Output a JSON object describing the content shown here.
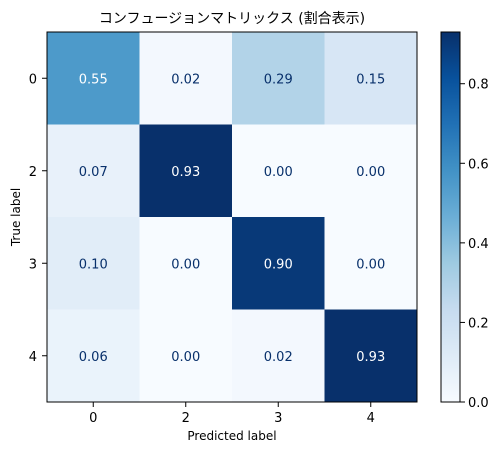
{
  "chart_data": {
    "type": "heatmap",
    "title": "コンフュージョンマトリックス (割合表示)",
    "xlabel": "Predicted label",
    "ylabel": "True label",
    "x_categories": [
      "0",
      "2",
      "3",
      "4"
    ],
    "y_categories": [
      "0",
      "2",
      "3",
      "4"
    ],
    "values": [
      [
        0.55,
        0.02,
        0.29,
        0.15
      ],
      [
        0.07,
        0.93,
        0.0,
        0.0
      ],
      [
        0.1,
        0.0,
        0.9,
        0.0
      ],
      [
        0.06,
        0.0,
        0.02,
        0.93
      ]
    ],
    "value_labels": [
      [
        "0.55",
        "0.02",
        "0.29",
        "0.15"
      ],
      [
        "0.07",
        "0.93",
        "0.00",
        "0.00"
      ],
      [
        "0.10",
        "0.00",
        "0.90",
        "0.00"
      ],
      [
        "0.06",
        "0.00",
        "0.02",
        "0.93"
      ]
    ],
    "colorbar": {
      "colormap": "Blues",
      "range": [
        0.0,
        0.93
      ],
      "ticks": [
        0.0,
        0.2,
        0.4,
        0.6,
        0.8
      ],
      "tick_labels": [
        "0.0",
        "0.2",
        "0.4",
        "0.6",
        "0.8"
      ]
    }
  }
}
